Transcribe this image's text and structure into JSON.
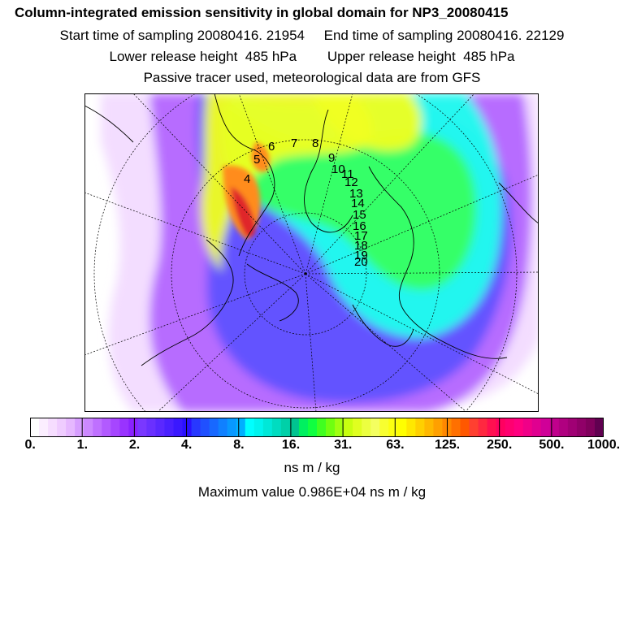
{
  "header": {
    "title": "Column-integrated emission sensitivity in global domain for NP3_20080415",
    "sampling": "Start time of sampling 20080416. 21954     End time of sampling 20080416. 22129",
    "release": "Lower release height  485 hPa        Upper release height  485 hPa",
    "note": "Passive tracer used, meteorological data are from GFS"
  },
  "map": {
    "projection": "north polar stereographic",
    "time_markers": [
      "4",
      "5",
      "6",
      "7",
      "8",
      "9",
      "10",
      "11",
      "12",
      "13",
      "14",
      "15",
      "16",
      "17",
      "18",
      "19",
      "20"
    ],
    "plume_colors": {
      "outer": "#f2d9ff",
      "violet": "#b060ff",
      "blue": "#5a50ff",
      "cyan": "#20ffee",
      "green": "#38ff60",
      "yellow": "#f0ff20",
      "orange": "#ff8c1a",
      "red": "#e0282a"
    }
  },
  "colorbar": {
    "colors": [
      "#ffffff",
      "#fbeeff",
      "#f6ddff",
      "#efccff",
      "#e6b8ff",
      "#d79eff",
      "#cc88ff",
      "#bf70ff",
      "#b25aff",
      "#a646ff",
      "#9933ff",
      "#8a22ff",
      "#7a38ff",
      "#6a30ff",
      "#5a28ff",
      "#4a20ff",
      "#3a18ff",
      "#2a10ff",
      "#2838ff",
      "#2050ff",
      "#1868ff",
      "#1080ff",
      "#0898ff",
      "#00b0ff",
      "#00ffff",
      "#00f4ee",
      "#00e8d8",
      "#00dcc0",
      "#00d0a8",
      "#00c490",
      "#00f060",
      "#10ff40",
      "#40ff20",
      "#70ff10",
      "#a0ff10",
      "#c8ff10",
      "#e0ff20",
      "#ecff40",
      "#f4ff60",
      "#f8ff30",
      "#fcff10",
      "#ffff00",
      "#ffe800",
      "#ffd000",
      "#ffb800",
      "#ffa000",
      "#ff8800",
      "#ff7000",
      "#ff5800",
      "#ff4030",
      "#ff2840",
      "#ff1050",
      "#ff0060",
      "#ff0070",
      "#ff0080",
      "#f00088",
      "#e00090",
      "#d00098",
      "#c0008c",
      "#b00080",
      "#a00074",
      "#900068",
      "#80005c",
      "#600050"
    ],
    "tick_labels": [
      "0.",
      "1.",
      "2.",
      "4.",
      "8.",
      "16.",
      "31.",
      "63.",
      "125.",
      "250.",
      "500.",
      "1000."
    ],
    "units": "ns m / kg"
  },
  "maximum": "Maximum value  0.986E+04 ns m / kg"
}
